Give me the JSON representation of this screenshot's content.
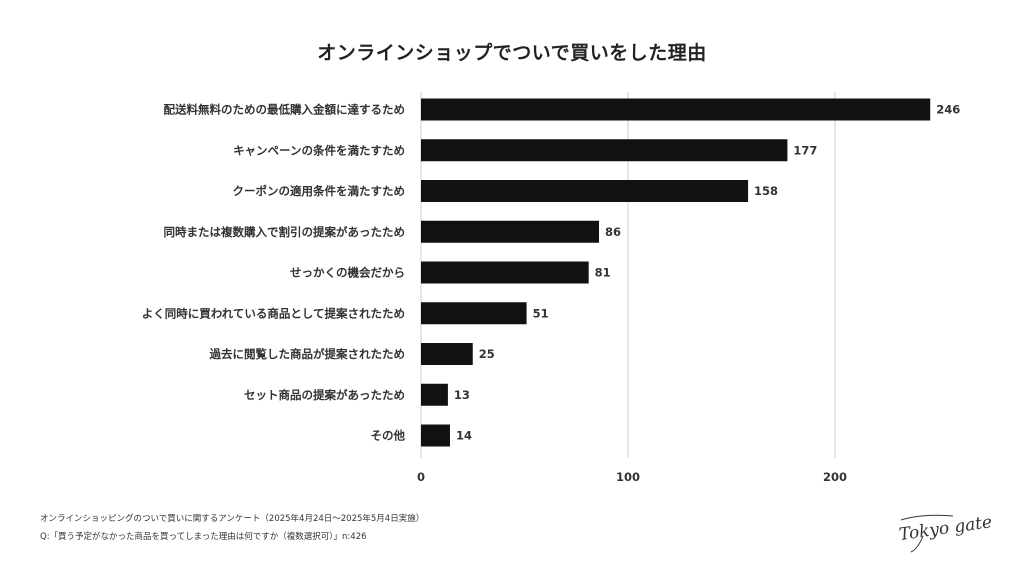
{
  "chart_data": {
    "type": "bar",
    "orientation": "horizontal",
    "title": "オンラインショップでついで買いをした理由",
    "categories": [
      "配送料無料のための最低購入金額に達するため",
      "キャンペーンの条件を満たすため",
      "クーポンの適用条件を満たすため",
      "同時または複数購入で割引の提案があったため",
      "せっかくの機会だから",
      "よく同時に買われている商品として提案されたため",
      "過去に閲覧した商品が提案されたため",
      "セット商品の提案があったため",
      "その他"
    ],
    "values": [
      246,
      177,
      158,
      86,
      81,
      51,
      25,
      13,
      14
    ],
    "x_ticks": [
      "0",
      "100",
      "200"
    ],
    "xlim": [
      0,
      250
    ],
    "grid": true,
    "legend": "none",
    "bar_color": "#111111",
    "grid_color": "#cccccc"
  },
  "footer": {
    "survey": "オンラインショッピングのついで買いに関するアンケート（2025年4月24日〜2025年5月4日実施）",
    "question": "Q:「買う予定がなかった商品を買ってしまった理由は何ですか（複数選択可）」n:426"
  },
  "logo": {
    "text": "Tokyo gate"
  }
}
